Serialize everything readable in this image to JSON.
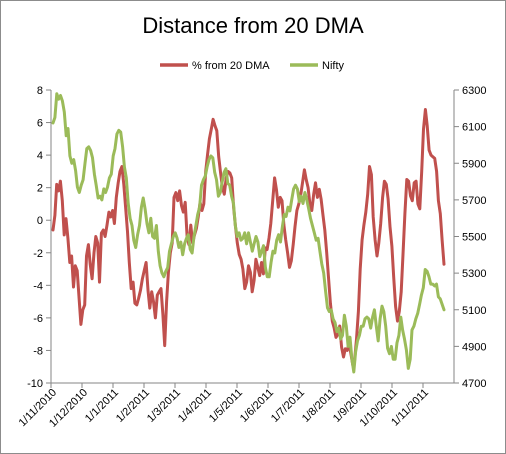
{
  "chart_data": {
    "type": "line",
    "title": "Distance from 20 DMA",
    "legend_position": "top",
    "colors": {
      "pct": "#c0504d",
      "nifty": "#9bbb59"
    },
    "x_ticks": [
      "1/11/2010",
      "1/12/2010",
      "1/1/2011",
      "1/2/2011",
      "1/3/2011",
      "1/4/2011",
      "1/5/2011",
      "1/6/2011",
      "1/7/2011",
      "1/8/2011",
      "1/9/2011",
      "1/10/2011",
      "1/11/2011"
    ],
    "y_left": {
      "min": -10,
      "max": 8,
      "step": 2,
      "ticks": [
        "8",
        "6",
        "4",
        "2",
        "0",
        "-2",
        "-4",
        "-6",
        "-8",
        "-10"
      ]
    },
    "y_right": {
      "min": 4700,
      "max": 6300,
      "step": 200,
      "ticks": [
        "6300",
        "6100",
        "5900",
        "5700",
        "5500",
        "5300",
        "5100",
        "4900",
        "4700"
      ]
    },
    "series": [
      {
        "name": "% from 20 DMA",
        "axis": "left",
        "values": [
          -0.6,
          0.3,
          2.2,
          1.8,
          2.4,
          1.2,
          -0.9,
          0.1,
          -1.1,
          -2.6,
          -2.2,
          -4.1,
          -2.8,
          -3.1,
          -4.8,
          -6.4,
          -5.5,
          -5.2,
          -2.2,
          -1.5,
          -2.7,
          -3.6,
          -2.0,
          -1.0,
          -1.4,
          -3.8,
          -0.8,
          -0.6,
          -1.0,
          -0.3,
          0.5,
          0.2,
          0.6,
          -0.2,
          1.4,
          2.3,
          3.0,
          3.3,
          2.2,
          0.8,
          -0.7,
          -2.6,
          -4.2,
          -3.8,
          -5.1,
          -5.2,
          -4.8,
          -4.3,
          -3.6,
          -3.1,
          -2.6,
          -4.3,
          -5.4,
          -4.4,
          -5.0,
          -6.0,
          -4.6,
          -4.4,
          -4.2,
          -5.8,
          -7.7,
          -5.0,
          -3.2,
          -2.0,
          -1.4,
          1.4,
          1.7,
          1.2,
          1.8,
          0.9,
          0.5,
          1.1,
          -1.0,
          -1.5,
          -0.3,
          -1.4,
          -0.9,
          -0.5,
          0.2,
          1.1,
          0.6,
          1.0,
          3.0,
          4.0,
          5.0,
          5.6,
          6.2,
          5.8,
          5.5,
          3.9,
          2.9,
          2.0,
          1.6,
          2.6,
          3.0,
          2.9,
          2.6,
          0.8,
          -0.4,
          -1.4,
          -2.1,
          -2.4,
          -3.0,
          -4.2,
          -3.8,
          -2.8,
          -3.2,
          -4.4,
          -3.7,
          -2.4,
          -2.9,
          -3.4,
          -2.6,
          -3.3,
          -1.7,
          -1.8,
          -1.1,
          -0.2,
          1.2,
          2.6,
          1.9,
          0.8,
          1.4,
          1.2,
          -0.3,
          -1.2,
          -2.0,
          -2.9,
          -2.5,
          -1.5,
          -0.4,
          0.6,
          1.0,
          1.5,
          2.3,
          3.1,
          2.5,
          2.0,
          1.0,
          0.6,
          1.6,
          2.3,
          1.4,
          1.9,
          1.3,
          0.3,
          -0.6,
          -2.0,
          -3.6,
          -5.1,
          -6.2,
          -6.6,
          -7.2,
          -7.0,
          -6.5,
          -7.8,
          -8.4,
          -7.9,
          -8.0,
          -7.6,
          -8.2,
          -8.9,
          -8.6,
          -7.3,
          -5.6,
          -3.0,
          -1.2,
          -0.3,
          0.5,
          1.6,
          3.3,
          2.8,
          0.2,
          -1.2,
          -2.2,
          -1.4,
          -0.2,
          1.4,
          2.4,
          2.2,
          1.3,
          -0.4,
          -1.6,
          -3.5,
          -5.3,
          -6.2,
          -5.6,
          -4.4,
          -2.1,
          0.4,
          2.5,
          2.4,
          1.5,
          1.2,
          2.3,
          2.4,
          1.0,
          0.7,
          3.0,
          5.6,
          6.8,
          5.8,
          4.3,
          4.0,
          3.9,
          3.8,
          3.0,
          1.2,
          0.4,
          -1.2,
          -2.7
        ]
      },
      {
        "name": "Nifty",
        "axis": "right",
        "values": [
          6120,
          6150,
          6280,
          6250,
          6270,
          6240,
          6180,
          6050,
          6090,
          5940,
          5900,
          5920,
          5860,
          5770,
          5740,
          5780,
          5810,
          5900,
          5980,
          5990,
          5970,
          5930,
          5840,
          5780,
          5710,
          5720,
          5700,
          5760,
          5740,
          5770,
          5820,
          5840,
          5940,
          5980,
          6060,
          6080,
          6070,
          5990,
          5880,
          5820,
          5680,
          5600,
          5560,
          5480,
          5440,
          5510,
          5560,
          5660,
          5710,
          5650,
          5570,
          5520,
          5600,
          5500,
          5490,
          5560,
          5420,
          5340,
          5300,
          5280,
          5310,
          5330,
          5420,
          5460,
          5500,
          5520,
          5490,
          5440,
          5470,
          5400,
          5460,
          5490,
          5510,
          5430,
          5410,
          5500,
          5560,
          5620,
          5660,
          5780,
          5810,
          5830,
          5880,
          5920,
          5940,
          5930,
          5850,
          5810,
          5720,
          5740,
          5800,
          5850,
          5870,
          5790,
          5780,
          5720,
          5680,
          5560,
          5500,
          5520,
          5480,
          5490,
          5520,
          5460,
          5520,
          5470,
          5420,
          5460,
          5500,
          5470,
          5390,
          5420,
          5450,
          5330,
          5280,
          5280,
          5360,
          5420,
          5410,
          5480,
          5510,
          5470,
          5550,
          5620,
          5610,
          5660,
          5640,
          5700,
          5760,
          5780,
          5760,
          5690,
          5720,
          5680,
          5740,
          5700,
          5650,
          5600,
          5560,
          5520,
          5480,
          5490,
          5420,
          5350,
          5300,
          5200,
          5110,
          5090,
          5100,
          5050,
          5030,
          4980,
          5000,
          4940,
          4960,
          5070,
          5010,
          4900,
          4950,
          4830,
          4760,
          4870,
          4930,
          4960,
          5010,
          5010,
          5050,
          5060,
          5050,
          5000,
          5060,
          5100,
          5010,
          4930,
          5050,
          5120,
          5090,
          5010,
          4890,
          4860,
          4900,
          4830,
          4830,
          4920,
          4960,
          5060,
          4990,
          4940,
          4880,
          4780,
          4830,
          4990,
          5010,
          5050,
          5080,
          5130,
          5180,
          5220,
          5320,
          5310,
          5280,
          5240,
          5240,
          5230,
          5240,
          5170,
          5160,
          5130,
          5100
        ]
      }
    ]
  }
}
